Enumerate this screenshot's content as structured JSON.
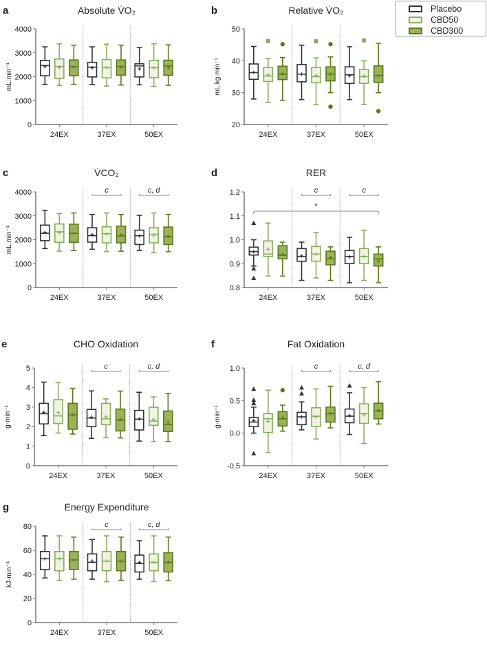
{
  "legend": [
    {
      "label": "Placebo",
      "stroke": "#333333",
      "fill": "#ffffff",
      "marker": "triangle"
    },
    {
      "label": "CBD50",
      "stroke": "#8aac5c",
      "fill": "#eef3e2",
      "marker": "square"
    },
    {
      "label": "CBD300",
      "stroke": "#5a7a1a",
      "fill": "#9bb25a",
      "marker": "circle"
    }
  ],
  "chart_data": [
    {
      "type": "box",
      "panel": "a",
      "title": "Absolute V̇O₂",
      "ylabel": "mL.min⁻¹",
      "ylim": [
        0,
        4000
      ],
      "yticks": [
        "0",
        "1000",
        "2000",
        "3000",
        "4000"
      ],
      "categories": [
        "24EX",
        "37EX",
        "50EX"
      ],
      "sig": [],
      "star": null,
      "boxes": [
        [
          [
            1680,
            2040,
            2470,
            2680,
            3250,
            2420,
            []
          ],
          [
            1630,
            1930,
            2430,
            2740,
            3370,
            2390,
            []
          ],
          [
            1680,
            2040,
            2420,
            2700,
            3320,
            2400,
            []
          ]
        ],
        [
          [
            1670,
            1990,
            2400,
            2600,
            3250,
            2370,
            []
          ],
          [
            1610,
            1950,
            2380,
            2720,
            3360,
            2380,
            []
          ],
          [
            1650,
            2060,
            2420,
            2700,
            3320,
            2400,
            []
          ]
        ],
        [
          [
            1660,
            1990,
            2450,
            2540,
            3220,
            2330,
            []
          ],
          [
            1590,
            1960,
            2380,
            2680,
            3380,
            2370,
            []
          ],
          [
            1640,
            2060,
            2450,
            2690,
            3330,
            2370,
            []
          ]
        ]
      ]
    },
    {
      "type": "box",
      "panel": "b",
      "title": "Relative V̇O₂",
      "ylabel": "mL.kg.min⁻¹",
      "ylim": [
        20,
        50
      ],
      "yticks": [
        "20",
        "30",
        "40",
        "50"
      ],
      "categories": [
        "24EX",
        "37EX",
        "50EX"
      ],
      "sig": [],
      "star": null,
      "boxes": [
        [
          [
            28.0,
            34.2,
            36.3,
            39.0,
            44.5,
            36.3,
            []
          ],
          [
            26.9,
            33.5,
            35.2,
            37.9,
            40.7,
            35.6,
            [
              46.2
            ]
          ],
          [
            27.6,
            34.1,
            35.8,
            38.3,
            41.0,
            36.0,
            [
              45.2
            ]
          ]
        ],
        [
          [
            27.8,
            33.4,
            35.8,
            38.8,
            44.9,
            35.8,
            []
          ],
          [
            26.2,
            33.1,
            35.0,
            37.9,
            40.9,
            35.4,
            [
              46.1
            ]
          ],
          [
            30.0,
            33.7,
            35.8,
            38.1,
            41.2,
            35.8,
            [
              45.2,
              25.6
            ]
          ]
        ],
        [
          [
            27.8,
            32.9,
            35.6,
            38.1,
            44.4,
            35.3,
            []
          ],
          [
            26.3,
            32.9,
            35.0,
            37.3,
            40.0,
            35.2,
            [
              46.4
            ]
          ],
          [
            30.0,
            33.2,
            35.4,
            38.4,
            45.5,
            35.3,
            [
              24.2
            ]
          ]
        ]
      ]
    },
    {
      "type": "box",
      "panel": "c",
      "title": "V̇CO₂",
      "ylabel": "mL.min⁻¹",
      "ylim": [
        0,
        4000
      ],
      "yticks": [
        "0",
        "1000",
        "2000",
        "3000",
        "4000"
      ],
      "categories": [
        "24EX",
        "37EX",
        "50EX"
      ],
      "sig": [
        "",
        "c",
        "c, d"
      ],
      "star": null,
      "boxes": [
        [
          [
            1630,
            1960,
            2270,
            2610,
            3230,
            2310,
            []
          ],
          [
            1520,
            1890,
            2330,
            2660,
            3100,
            2300,
            []
          ],
          [
            1550,
            1890,
            2270,
            2650,
            3120,
            2270,
            []
          ]
        ],
        [
          [
            1600,
            1900,
            2170,
            2500,
            3060,
            2210,
            []
          ],
          [
            1500,
            1870,
            2250,
            2540,
            3120,
            2240,
            []
          ],
          [
            1520,
            1870,
            2160,
            2570,
            3060,
            2200,
            []
          ]
        ],
        [
          [
            1550,
            1800,
            2170,
            2400,
            3020,
            2160,
            []
          ],
          [
            1460,
            1870,
            2210,
            2500,
            3120,
            2200,
            []
          ],
          [
            1500,
            1800,
            2120,
            2530,
            3060,
            2150,
            []
          ]
        ]
      ]
    },
    {
      "type": "box",
      "panel": "d",
      "title": "RER",
      "ylabel": "",
      "ylim": [
        0.8,
        1.2
      ],
      "yticks": [
        "0.8",
        "0.9",
        "1.0",
        "1.1",
        "1.2"
      ],
      "categories": [
        "24EX",
        "37EX",
        "50EX"
      ],
      "sig": [
        "",
        "c",
        "c"
      ],
      "star": "*",
      "boxes": [
        [
          [
            0.89,
            0.936,
            0.95,
            0.969,
            1.0,
            0.95,
            [
              1.07,
              0.88,
              0.84
            ]
          ],
          [
            0.848,
            0.93,
            0.94,
            0.995,
            1.07,
            0.96,
            []
          ],
          [
            0.848,
            0.92,
            0.935,
            0.975,
            0.99,
            0.94,
            []
          ]
        ],
        [
          [
            0.83,
            0.91,
            0.93,
            0.963,
            0.99,
            0.932,
            []
          ],
          [
            0.84,
            0.91,
            0.94,
            0.972,
            1.03,
            0.94,
            []
          ],
          [
            0.83,
            0.895,
            0.92,
            0.952,
            0.97,
            0.925,
            []
          ]
        ],
        [
          [
            0.82,
            0.9,
            0.93,
            0.955,
            1.01,
            0.928,
            []
          ],
          [
            0.83,
            0.9,
            0.93,
            0.963,
            1.04,
            0.93,
            []
          ],
          [
            0.82,
            0.89,
            0.92,
            0.94,
            0.97,
            0.91,
            []
          ]
        ]
      ]
    },
    {
      "type": "box",
      "panel": "e",
      "title": "CHO Oxidation",
      "ylabel": "g·min⁻¹",
      "ylim": [
        0,
        5
      ],
      "yticks": [
        "0",
        "1",
        "2",
        "3",
        "4",
        "5"
      ],
      "categories": [
        "24EX",
        "37EX",
        "50EX"
      ],
      "sig": [
        "",
        "c",
        "c, d"
      ],
      "star": null,
      "boxes": [
        [
          [
            1.54,
            2.14,
            2.66,
            3.19,
            4.28,
            2.73,
            []
          ],
          [
            1.67,
            2.16,
            2.55,
            3.38,
            4.25,
            2.72,
            []
          ],
          [
            1.62,
            1.87,
            2.6,
            3.19,
            3.96,
            2.6,
            []
          ]
        ],
        [
          [
            1.4,
            2.0,
            2.44,
            2.88,
            3.83,
            2.48,
            []
          ],
          [
            1.43,
            2.1,
            2.4,
            3.19,
            3.42,
            2.5,
            []
          ],
          [
            1.42,
            1.78,
            2.33,
            2.9,
            3.82,
            2.38,
            []
          ]
        ],
        [
          [
            1.26,
            1.83,
            2.38,
            2.83,
            3.76,
            2.4,
            []
          ],
          [
            1.23,
            2.07,
            2.28,
            2.99,
            3.52,
            2.37,
            []
          ],
          [
            1.23,
            1.75,
            2.1,
            2.8,
            3.7,
            2.23,
            []
          ]
        ]
      ]
    },
    {
      "type": "box",
      "panel": "f",
      "title": "Fat Oxidation",
      "ylabel": "g·min⁻¹",
      "ylim": [
        -0.5,
        1.0
      ],
      "yticks": [
        "-0.5",
        "0.0",
        "0.5",
        "1.0"
      ],
      "categories": [
        "24EX",
        "37EX",
        "50EX"
      ],
      "sig": [
        "",
        "c",
        "c, d"
      ],
      "star": null,
      "boxes": [
        [
          [
            0.0,
            0.1,
            0.17,
            0.24,
            0.4,
            0.19,
            [
              0.68,
              0.51,
              0.46,
              -0.31
            ]
          ],
          [
            -0.3,
            0.01,
            0.22,
            0.3,
            0.66,
            0.18,
            []
          ],
          [
            0.03,
            0.11,
            0.22,
            0.33,
            0.43,
            0.23,
            [
              0.66
            ]
          ]
        ],
        [
          [
            0.05,
            0.13,
            0.25,
            0.32,
            0.48,
            0.25,
            [
              0.7,
              0.61
            ]
          ],
          [
            -0.09,
            0.1,
            0.26,
            0.39,
            0.68,
            0.25,
            []
          ],
          [
            0.08,
            0.17,
            0.3,
            0.4,
            0.72,
            0.3,
            []
          ]
        ],
        [
          [
            -0.02,
            0.16,
            0.26,
            0.37,
            0.62,
            0.27,
            [
              0.73
            ]
          ],
          [
            -0.16,
            0.15,
            0.3,
            0.45,
            0.7,
            0.28,
            []
          ],
          [
            0.14,
            0.22,
            0.34,
            0.46,
            0.79,
            0.35,
            []
          ]
        ]
      ]
    },
    {
      "type": "box",
      "panel": "g",
      "title": "Energy Expenditure",
      "ylabel": "kJ·min⁻¹",
      "ylim": [
        0,
        80
      ],
      "yticks": [
        "0",
        "20",
        "40",
        "60",
        "80"
      ],
      "categories": [
        "24EX",
        "37EX",
        "50EX"
      ],
      "sig": [
        "",
        "c",
        "c, d"
      ],
      "star": null,
      "boxes": [
        [
          [
            37,
            44,
            53,
            59,
            72,
            53,
            []
          ],
          [
            35,
            43,
            53,
            59,
            72,
            53,
            []
          ],
          [
            36,
            44,
            52,
            59,
            71,
            52,
            []
          ]
        ],
        [
          [
            36,
            43,
            50,
            57,
            69,
            51,
            []
          ],
          [
            34,
            43,
            51,
            59,
            72,
            51,
            []
          ],
          [
            35,
            43,
            51,
            59,
            71,
            51,
            []
          ]
        ],
        [
          [
            36,
            42,
            49,
            56,
            68,
            50,
            []
          ],
          [
            34,
            43,
            50,
            57,
            72,
            50,
            []
          ],
          [
            35,
            42,
            50,
            58,
            71,
            50,
            []
          ]
        ]
      ]
    }
  ]
}
